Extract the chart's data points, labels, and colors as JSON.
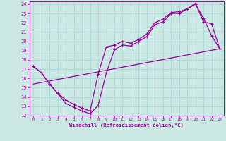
{
  "xlabel": "Windchill (Refroidissement éolien,°C)",
  "bg_color": "#cce8e4",
  "grid_color": "#aad8d4",
  "line_color": "#990099",
  "xlim": [
    -0.5,
    23.5
  ],
  "ylim": [
    12,
    24.3
  ],
  "xticks": [
    0,
    1,
    2,
    3,
    4,
    5,
    6,
    7,
    8,
    9,
    10,
    11,
    12,
    13,
    14,
    15,
    16,
    17,
    18,
    19,
    20,
    21,
    22,
    23
  ],
  "yticks": [
    12,
    13,
    14,
    15,
    16,
    17,
    18,
    19,
    20,
    21,
    22,
    23,
    24
  ],
  "line1_x": [
    0,
    1,
    2,
    3,
    4,
    5,
    6,
    7,
    8,
    9,
    10,
    11,
    12,
    13,
    14,
    15,
    16,
    17,
    18,
    19,
    20,
    21,
    22,
    23
  ],
  "line1_y": [
    17.3,
    16.6,
    15.4,
    14.4,
    13.3,
    12.9,
    12.5,
    12.2,
    13.1,
    16.6,
    19.1,
    19.6,
    19.5,
    20.0,
    20.5,
    21.8,
    22.1,
    23.0,
    23.0,
    23.5,
    24.1,
    22.1,
    21.9,
    19.2
  ],
  "line2_x": [
    0,
    1,
    2,
    3,
    4,
    5,
    6,
    7,
    8,
    9,
    10,
    11,
    12,
    13,
    14,
    15,
    16,
    17,
    18,
    19,
    20,
    21,
    22,
    23
  ],
  "line2_y": [
    17.3,
    16.6,
    15.4,
    14.4,
    13.7,
    13.2,
    12.8,
    12.5,
    16.5,
    19.4,
    19.6,
    20.0,
    19.8,
    20.2,
    20.8,
    22.0,
    22.4,
    23.1,
    23.2,
    23.5,
    24.0,
    22.5,
    20.6,
    19.2
  ],
  "line3_x": [
    0,
    23
  ],
  "line3_y": [
    15.4,
    19.2
  ]
}
